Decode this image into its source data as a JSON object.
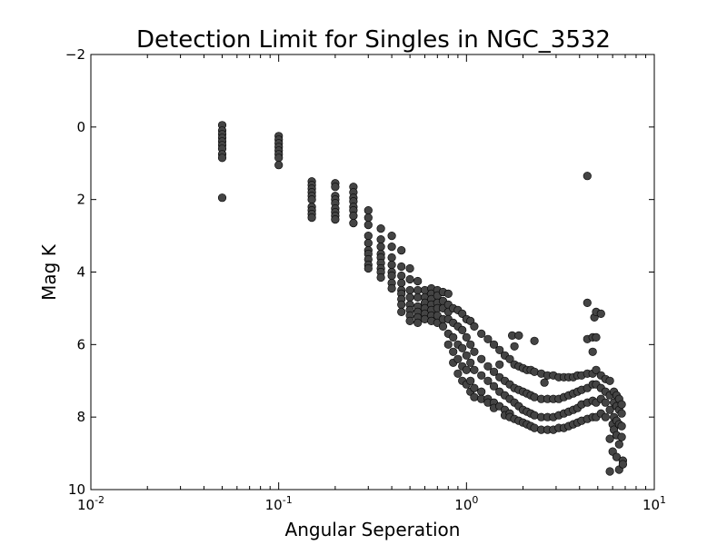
{
  "chart_data": {
    "type": "scatter",
    "title": "Detection Limit for Singles in NGC_3532",
    "xlabel": "Angular Seperation",
    "ylabel": "Mag K",
    "xscale": "log",
    "xlim": [
      0.01,
      10
    ],
    "ylim": [
      10,
      -2
    ],
    "y_inverted": true,
    "grid": false,
    "marker_color": "#444444",
    "x_ticks": [
      {
        "base": "10",
        "exp": "-2",
        "value": 0.01
      },
      {
        "base": "10",
        "exp": "-1",
        "value": 0.1
      },
      {
        "base": "10",
        "exp": "0",
        "value": 1
      },
      {
        "base": "10",
        "exp": "1",
        "value": 10
      }
    ],
    "y_ticks": [
      {
        "label": "−2",
        "value": -2
      },
      {
        "label": "0",
        "value": 0
      },
      {
        "label": "2",
        "value": 2
      },
      {
        "label": "4",
        "value": 4
      },
      {
        "label": "6",
        "value": 6
      },
      {
        "label": "8",
        "value": 8
      },
      {
        "label": "10",
        "value": 10
      }
    ],
    "series": [
      {
        "points": [
          [
            0.05,
            -0.05
          ],
          [
            0.05,
            0.1
          ],
          [
            0.05,
            0.2
          ],
          [
            0.05,
            0.3
          ],
          [
            0.05,
            0.4
          ],
          [
            0.05,
            0.5
          ],
          [
            0.05,
            0.6
          ],
          [
            0.05,
            0.75
          ],
          [
            0.05,
            0.85
          ],
          [
            0.05,
            1.95
          ],
          [
            0.1,
            0.25
          ],
          [
            0.1,
            0.35
          ],
          [
            0.1,
            0.45
          ],
          [
            0.1,
            0.55
          ],
          [
            0.1,
            0.65
          ],
          [
            0.1,
            0.75
          ],
          [
            0.1,
            0.85
          ],
          [
            0.1,
            1.05
          ],
          [
            0.15,
            1.5
          ],
          [
            0.15,
            1.6
          ],
          [
            0.15,
            1.7
          ],
          [
            0.15,
            1.8
          ],
          [
            0.15,
            1.9
          ],
          [
            0.15,
            2.0
          ],
          [
            0.15,
            2.2
          ],
          [
            0.15,
            2.3
          ],
          [
            0.15,
            2.4
          ],
          [
            0.15,
            2.5
          ],
          [
            0.2,
            1.55
          ],
          [
            0.2,
            1.65
          ],
          [
            0.2,
            1.9
          ],
          [
            0.2,
            2.0
          ],
          [
            0.2,
            2.1
          ],
          [
            0.2,
            2.25
          ],
          [
            0.2,
            2.35
          ],
          [
            0.2,
            2.45
          ],
          [
            0.2,
            2.55
          ],
          [
            0.25,
            1.65
          ],
          [
            0.25,
            1.8
          ],
          [
            0.25,
            1.95
          ],
          [
            0.25,
            2.05
          ],
          [
            0.25,
            2.2
          ],
          [
            0.25,
            2.3
          ],
          [
            0.25,
            2.45
          ],
          [
            0.25,
            2.65
          ],
          [
            0.3,
            2.3
          ],
          [
            0.3,
            2.5
          ],
          [
            0.3,
            2.7
          ],
          [
            0.3,
            3.0
          ],
          [
            0.3,
            3.2
          ],
          [
            0.3,
            3.4
          ],
          [
            0.3,
            3.5
          ],
          [
            0.3,
            3.65
          ],
          [
            0.3,
            3.8
          ],
          [
            0.3,
            3.9
          ],
          [
            0.35,
            2.8
          ],
          [
            0.35,
            3.1
          ],
          [
            0.35,
            3.3
          ],
          [
            0.35,
            3.5
          ],
          [
            0.35,
            3.6
          ],
          [
            0.35,
            3.75
          ],
          [
            0.35,
            3.9
          ],
          [
            0.35,
            4.0
          ],
          [
            0.35,
            4.15
          ],
          [
            0.4,
            3.0
          ],
          [
            0.4,
            3.3
          ],
          [
            0.4,
            3.6
          ],
          [
            0.4,
            3.8
          ],
          [
            0.4,
            4.0
          ],
          [
            0.4,
            4.1
          ],
          [
            0.4,
            4.3
          ],
          [
            0.4,
            4.45
          ],
          [
            0.45,
            3.4
          ],
          [
            0.45,
            3.85
          ],
          [
            0.45,
            4.1
          ],
          [
            0.45,
            4.3
          ],
          [
            0.45,
            4.5
          ],
          [
            0.45,
            4.6
          ],
          [
            0.45,
            4.75
          ],
          [
            0.45,
            4.9
          ],
          [
            0.45,
            5.1
          ],
          [
            0.5,
            3.9
          ],
          [
            0.5,
            4.2
          ],
          [
            0.5,
            4.5
          ],
          [
            0.5,
            4.7
          ],
          [
            0.5,
            4.9
          ],
          [
            0.5,
            5.05
          ],
          [
            0.5,
            5.2
          ],
          [
            0.5,
            5.35
          ],
          [
            0.55,
            4.25
          ],
          [
            0.55,
            4.5
          ],
          [
            0.55,
            4.7
          ],
          [
            0.55,
            4.95
          ],
          [
            0.55,
            5.1
          ],
          [
            0.55,
            5.25
          ],
          [
            0.55,
            5.4
          ],
          [
            0.6,
            4.5
          ],
          [
            0.6,
            4.7
          ],
          [
            0.6,
            4.85
          ],
          [
            0.6,
            5.0
          ],
          [
            0.6,
            5.15
          ],
          [
            0.6,
            5.3
          ],
          [
            0.65,
            4.45
          ],
          [
            0.65,
            4.6
          ],
          [
            0.65,
            4.75
          ],
          [
            0.65,
            4.9
          ],
          [
            0.65,
            5.05
          ],
          [
            0.65,
            5.2
          ],
          [
            0.65,
            5.35
          ],
          [
            0.7,
            4.5
          ],
          [
            0.7,
            4.65
          ],
          [
            0.7,
            4.85
          ],
          [
            0.7,
            5.0
          ],
          [
            0.7,
            5.2
          ],
          [
            0.7,
            5.4
          ],
          [
            0.75,
            4.55
          ],
          [
            0.75,
            4.8
          ],
          [
            0.75,
            5.0
          ],
          [
            0.75,
            5.3
          ],
          [
            0.75,
            5.5
          ],
          [
            0.8,
            4.6
          ],
          [
            0.8,
            4.9
          ],
          [
            0.8,
            5.1
          ],
          [
            0.8,
            5.3
          ],
          [
            0.8,
            5.7
          ],
          [
            0.8,
            6.0
          ],
          [
            0.85,
            5.0
          ],
          [
            0.85,
            5.4
          ],
          [
            0.85,
            5.8
          ],
          [
            0.85,
            6.2
          ],
          [
            0.85,
            6.5
          ],
          [
            0.9,
            5.05
          ],
          [
            0.9,
            5.5
          ],
          [
            0.9,
            6.0
          ],
          [
            0.9,
            6.4
          ],
          [
            0.9,
            6.8
          ],
          [
            0.95,
            5.15
          ],
          [
            0.95,
            5.6
          ],
          [
            0.95,
            6.1
          ],
          [
            0.95,
            6.6
          ],
          [
            0.95,
            7.0
          ],
          [
            1.0,
            5.3
          ],
          [
            1.0,
            5.8
          ],
          [
            1.0,
            6.3
          ],
          [
            1.0,
            6.7
          ],
          [
            1.0,
            7.1
          ],
          [
            1.05,
            5.35
          ],
          [
            1.05,
            6.0
          ],
          [
            1.05,
            6.5
          ],
          [
            1.05,
            7.0
          ],
          [
            1.05,
            7.3
          ],
          [
            1.1,
            5.5
          ],
          [
            1.1,
            6.2
          ],
          [
            1.1,
            6.7
          ],
          [
            1.1,
            7.2
          ],
          [
            1.1,
            7.45
          ],
          [
            1.2,
            5.7
          ],
          [
            1.2,
            6.4
          ],
          [
            1.2,
            6.85
          ],
          [
            1.2,
            7.3
          ],
          [
            1.2,
            7.5
          ],
          [
            1.3,
            5.85
          ],
          [
            1.3,
            6.6
          ],
          [
            1.3,
            7.0
          ],
          [
            1.3,
            7.5
          ],
          [
            1.3,
            7.6
          ],
          [
            1.4,
            6.0
          ],
          [
            1.4,
            6.75
          ],
          [
            1.4,
            7.15
          ],
          [
            1.4,
            7.6
          ],
          [
            1.4,
            7.75
          ],
          [
            1.5,
            6.15
          ],
          [
            1.5,
            6.55
          ],
          [
            1.5,
            6.9
          ],
          [
            1.5,
            7.3
          ],
          [
            1.5,
            7.7
          ],
          [
            1.6,
            6.3
          ],
          [
            1.6,
            7.0
          ],
          [
            1.6,
            7.4
          ],
          [
            1.6,
            7.8
          ],
          [
            1.6,
            7.95
          ],
          [
            1.7,
            6.4
          ],
          [
            1.7,
            7.1
          ],
          [
            1.7,
            7.5
          ],
          [
            1.7,
            7.9
          ],
          [
            1.7,
            8.0
          ],
          [
            1.75,
            5.75
          ],
          [
            1.8,
            6.05
          ],
          [
            1.8,
            6.55
          ],
          [
            1.8,
            7.2
          ],
          [
            1.8,
            7.6
          ],
          [
            1.8,
            8.05
          ],
          [
            1.9,
            5.75
          ],
          [
            1.9,
            6.6
          ],
          [
            1.9,
            7.25
          ],
          [
            1.9,
            7.7
          ],
          [
            1.9,
            8.1
          ],
          [
            2.0,
            6.65
          ],
          [
            2.0,
            7.3
          ],
          [
            2.0,
            7.8
          ],
          [
            2.0,
            8.15
          ],
          [
            2.1,
            6.7
          ],
          [
            2.1,
            7.35
          ],
          [
            2.1,
            7.85
          ],
          [
            2.1,
            8.2
          ],
          [
            2.2,
            6.7
          ],
          [
            2.2,
            7.4
          ],
          [
            2.2,
            7.9
          ],
          [
            2.2,
            8.25
          ],
          [
            2.3,
            5.9
          ],
          [
            2.3,
            6.75
          ],
          [
            2.3,
            7.45
          ],
          [
            2.3,
            7.95
          ],
          [
            2.3,
            8.3
          ],
          [
            2.5,
            6.8
          ],
          [
            2.5,
            7.5
          ],
          [
            2.5,
            8.0
          ],
          [
            2.5,
            8.35
          ],
          [
            2.6,
            7.05
          ],
          [
            2.7,
            6.85
          ],
          [
            2.7,
            7.5
          ],
          [
            2.7,
            8.0
          ],
          [
            2.7,
            8.35
          ],
          [
            2.9,
            6.85
          ],
          [
            2.9,
            7.5
          ],
          [
            2.9,
            8.0
          ],
          [
            2.9,
            8.35
          ],
          [
            3.1,
            6.9
          ],
          [
            3.1,
            7.5
          ],
          [
            3.1,
            7.95
          ],
          [
            3.1,
            8.3
          ],
          [
            3.3,
            6.9
          ],
          [
            3.3,
            7.45
          ],
          [
            3.3,
            7.9
          ],
          [
            3.3,
            8.3
          ],
          [
            3.5,
            6.9
          ],
          [
            3.5,
            7.4
          ],
          [
            3.5,
            7.85
          ],
          [
            3.5,
            8.25
          ],
          [
            3.7,
            6.9
          ],
          [
            3.7,
            7.35
          ],
          [
            3.7,
            7.8
          ],
          [
            3.7,
            8.2
          ],
          [
            3.9,
            6.85
          ],
          [
            3.9,
            7.3
          ],
          [
            3.9,
            7.75
          ],
          [
            3.9,
            8.15
          ],
          [
            4.1,
            6.85
          ],
          [
            4.1,
            7.25
          ],
          [
            4.1,
            7.65
          ],
          [
            4.1,
            8.1
          ],
          [
            4.4,
            1.35
          ],
          [
            4.4,
            4.85
          ],
          [
            4.4,
            5.85
          ],
          [
            4.4,
            6.8
          ],
          [
            4.4,
            7.2
          ],
          [
            4.4,
            7.6
          ],
          [
            4.4,
            8.05
          ],
          [
            4.7,
            5.8
          ],
          [
            4.7,
            6.2
          ],
          [
            4.7,
            6.8
          ],
          [
            4.7,
            7.1
          ],
          [
            4.7,
            7.55
          ],
          [
            4.7,
            8.0
          ],
          [
            4.8,
            5.25
          ],
          [
            4.9,
            5.1
          ],
          [
            4.9,
            5.8
          ],
          [
            4.9,
            6.7
          ],
          [
            4.9,
            7.1
          ],
          [
            4.9,
            7.6
          ],
          [
            4.9,
            8.0
          ],
          [
            5.2,
            5.15
          ],
          [
            5.2,
            6.85
          ],
          [
            5.2,
            7.2
          ],
          [
            5.2,
            7.5
          ],
          [
            5.2,
            7.9
          ],
          [
            5.5,
            6.95
          ],
          [
            5.5,
            7.3
          ],
          [
            5.5,
            7.6
          ],
          [
            5.5,
            8.0
          ],
          [
            5.8,
            7.0
          ],
          [
            5.8,
            7.4
          ],
          [
            5.8,
            7.8
          ],
          [
            5.8,
            8.6
          ],
          [
            5.8,
            9.5
          ],
          [
            6.0,
            8.2
          ],
          [
            6.0,
            8.95
          ],
          [
            6.1,
            7.3
          ],
          [
            6.1,
            7.6
          ],
          [
            6.1,
            8.0
          ],
          [
            6.1,
            8.35
          ],
          [
            6.3,
            7.4
          ],
          [
            6.3,
            7.7
          ],
          [
            6.3,
            8.1
          ],
          [
            6.3,
            8.5
          ],
          [
            6.3,
            9.1
          ],
          [
            6.5,
            7.5
          ],
          [
            6.5,
            7.8
          ],
          [
            6.5,
            8.2
          ],
          [
            6.5,
            8.75
          ],
          [
            6.5,
            9.45
          ],
          [
            6.7,
            7.65
          ],
          [
            6.7,
            7.9
          ],
          [
            6.7,
            8.25
          ],
          [
            6.7,
            8.55
          ],
          [
            6.8,
            9.2
          ],
          [
            6.8,
            9.3
          ]
        ]
      }
    ]
  }
}
